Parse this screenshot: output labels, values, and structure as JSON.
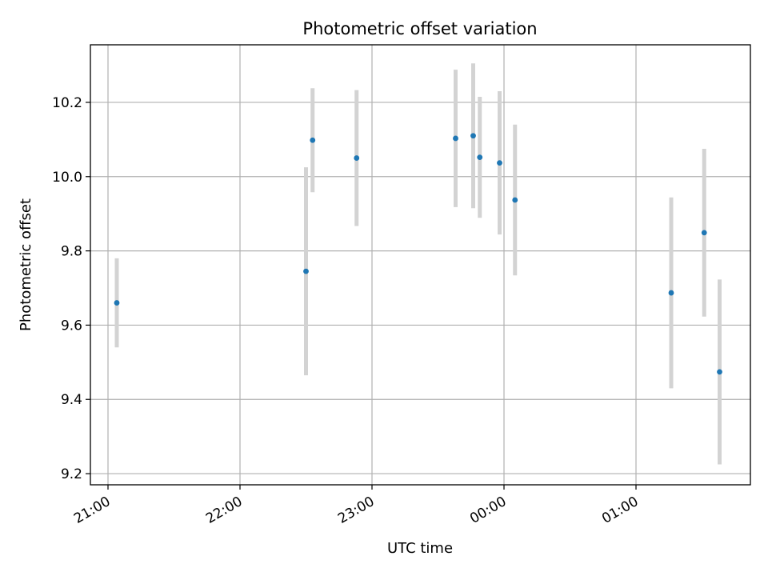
{
  "chart_data": {
    "type": "scatter",
    "title": "Photometric offset variation",
    "xlabel": "UTC time",
    "ylabel": "Photometric offset",
    "grid": true,
    "x_axis": "time",
    "xlim": [
      "20:52",
      "01:52"
    ],
    "ylim": [
      9.17,
      10.355
    ],
    "x_ticks": [
      "21:00",
      "22:00",
      "23:00",
      "00:00",
      "01:00"
    ],
    "y_ticks": [
      9.2,
      9.4,
      9.6,
      9.8,
      10.0,
      10.2
    ],
    "y_tick_labels": [
      "9.2",
      "9.4",
      "9.6",
      "9.8",
      "10.0",
      "10.2"
    ],
    "colors": {
      "points": "#1f77b4",
      "error_bars": "#d3d3d3",
      "grid": "#b0b0b0"
    },
    "points": [
      {
        "x": "21:04",
        "y": 9.66,
        "err": 0.12
      },
      {
        "x": "22:30",
        "y": 9.745,
        "err": 0.28
      },
      {
        "x": "22:33",
        "y": 10.098,
        "err": 0.14
      },
      {
        "x": "22:53",
        "y": 10.05,
        "err": 0.183
      },
      {
        "x": "23:38",
        "y": 10.103,
        "err": 0.185
      },
      {
        "x": "23:46",
        "y": 10.11,
        "err": 0.195
      },
      {
        "x": "23:49",
        "y": 10.052,
        "err": 0.163
      },
      {
        "x": "23:58",
        "y": 10.037,
        "err": 0.193
      },
      {
        "x": "00:05",
        "y": 9.937,
        "err": 0.203
      },
      {
        "x": "01:16",
        "y": 9.687,
        "err": 0.257
      },
      {
        "x": "01:31",
        "y": 9.849,
        "err": 0.226
      },
      {
        "x": "01:38",
        "y": 9.474,
        "err": 0.249
      }
    ]
  }
}
